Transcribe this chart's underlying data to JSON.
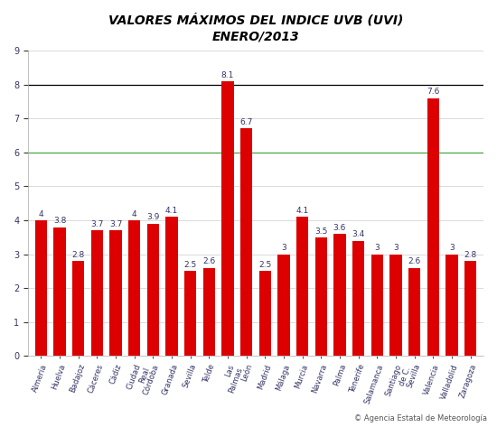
{
  "title_line1": "VALORES MÁXIMOS DEL INDICE UVB (UVI)",
  "title_line2": "ENERO/2013",
  "categories": [
    "Almería",
    "Huelva",
    "Badajoz",
    "Cáceres",
    "Cádiz",
    "Ciudad\nReal",
    "Córdoba",
    "Granada",
    "Sevilla",
    "Telde",
    "Las\nPalmas",
    "León",
    "Madrid",
    "Málaga",
    "Murcia",
    "Navarra",
    "Palma",
    "Tenerife",
    "Salamanca",
    "Santiago\nde C.",
    "Sevilla",
    "Valencia",
    "Valladolid",
    "Zaragoza"
  ],
  "values": [
    4.0,
    3.8,
    2.8,
    3.7,
    3.7,
    4.0,
    3.9,
    4.1,
    2.5,
    2.6,
    8.1,
    6.7,
    2.5,
    3.0,
    4.1,
    3.5,
    3.6,
    3.4,
    3.0,
    3.0,
    2.6,
    7.6,
    3.0,
    2.8
  ],
  "bar_color": "#dd0000",
  "ylim": [
    0,
    9
  ],
  "yticks": [
    0,
    1,
    2,
    3,
    4,
    5,
    6,
    7,
    8,
    9
  ],
  "grid_color": "#cccccc",
  "hline8_color": "#000000",
  "hline6_color": "#44aa44",
  "bg_color": "#ffffff",
  "label_fontsize": 6.0,
  "value_fontsize": 6.5,
  "title_fontsize": 10,
  "footer_text": "© Agencia Estatal de Meteorología",
  "footer_fontsize": 6
}
